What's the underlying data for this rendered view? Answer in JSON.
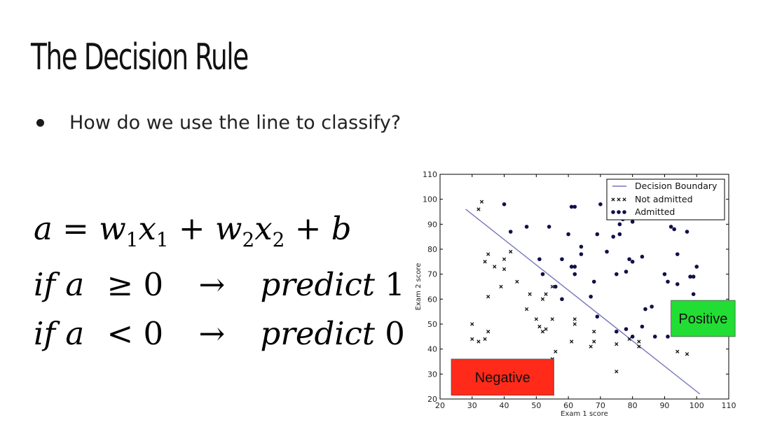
{
  "slide": {
    "title": "The Decision Rule",
    "bullet": "How do we use the line to classify?"
  },
  "equations": {
    "line1": {
      "a": "a",
      "eq": "=",
      "w1": "w",
      "s1": "1",
      "x1": "x",
      "s2": "1",
      "plus1": "+",
      "w2": "w",
      "s3": "2",
      "x2": "x",
      "s4": "2",
      "plus2": "+",
      "b": "b"
    },
    "line2": {
      "if": "if",
      "a": "a",
      "op": "≥ 0",
      "arrow": "→",
      "predict": "predict",
      "value": "1"
    },
    "line3": {
      "if": "if",
      "a": "a",
      "op": "< 0",
      "arrow": "→",
      "predict": "predict",
      "value": "0"
    }
  },
  "chart_data": {
    "type": "scatter",
    "xlabel": "Exam 1 score",
    "ylabel": "Exam 2 score",
    "xlim": [
      20,
      110
    ],
    "ylim": [
      20,
      110
    ],
    "xticks": [
      20,
      30,
      40,
      50,
      60,
      70,
      80,
      90,
      100,
      110
    ],
    "yticks": [
      20,
      30,
      40,
      50,
      60,
      70,
      80,
      90,
      100,
      110
    ],
    "grid": false,
    "legend_position": "top-right",
    "legend": [
      "Decision Boundary",
      "Not admitted",
      "Admitted"
    ],
    "boundary": {
      "name": "Decision Boundary",
      "color": "#7777bb",
      "x": [
        28,
        101
      ],
      "y": [
        96,
        22
      ]
    },
    "series": [
      {
        "name": "Not admitted",
        "marker": "x",
        "color": "#111111",
        "points": [
          [
            33,
            99
          ],
          [
            32,
            96
          ],
          [
            35,
            78
          ],
          [
            34,
            75
          ],
          [
            37,
            73
          ],
          [
            40,
            76
          ],
          [
            42,
            79
          ],
          [
            40,
            72
          ],
          [
            44,
            67
          ],
          [
            39,
            65
          ],
          [
            35,
            61
          ],
          [
            48,
            62
          ],
          [
            52,
            60
          ],
          [
            53,
            62
          ],
          [
            55,
            65
          ],
          [
            47,
            56
          ],
          [
            50,
            52
          ],
          [
            51,
            49
          ],
          [
            52,
            47
          ],
          [
            55,
            52
          ],
          [
            53,
            48
          ],
          [
            30,
            50
          ],
          [
            30,
            44
          ],
          [
            32,
            43
          ],
          [
            34,
            44
          ],
          [
            35,
            47
          ],
          [
            56,
            39
          ],
          [
            55,
            36
          ],
          [
            61,
            43
          ],
          [
            62,
            50
          ],
          [
            62,
            52
          ],
          [
            67,
            41
          ],
          [
            68,
            43
          ],
          [
            68,
            47
          ],
          [
            75,
            42
          ],
          [
            79,
            44
          ],
          [
            82,
            43
          ],
          [
            82,
            41
          ],
          [
            75,
            31
          ],
          [
            94,
            39
          ],
          [
            97,
            38
          ]
        ]
      },
      {
        "name": "Admitted",
        "marker": "o",
        "color": "#10104a",
        "points": [
          [
            40,
            98
          ],
          [
            42,
            87
          ],
          [
            47,
            89
          ],
          [
            54,
            89
          ],
          [
            61,
            97
          ],
          [
            62,
            97
          ],
          [
            70,
            98
          ],
          [
            76,
            90
          ],
          [
            77,
            92
          ],
          [
            74,
            85
          ],
          [
            76,
            86
          ],
          [
            80,
            91
          ],
          [
            60,
            86
          ],
          [
            64,
            81
          ],
          [
            58,
            76
          ],
          [
            61,
            73
          ],
          [
            62,
            73
          ],
          [
            62,
            70
          ],
          [
            64,
            78
          ],
          [
            72,
            79
          ],
          [
            83,
            77
          ],
          [
            69,
            86
          ],
          [
            51,
            76
          ],
          [
            52,
            70
          ],
          [
            56,
            65
          ],
          [
            58,
            60
          ],
          [
            67,
            61
          ],
          [
            68,
            67
          ],
          [
            69,
            53
          ],
          [
            75,
            70
          ],
          [
            78,
            71
          ],
          [
            79,
            76
          ],
          [
            80,
            75
          ],
          [
            84,
            56
          ],
          [
            86,
            57
          ],
          [
            83,
            49
          ],
          [
            87,
            45
          ],
          [
            75,
            47
          ],
          [
            78,
            48
          ],
          [
            80,
            45
          ],
          [
            90,
            70
          ],
          [
            91,
            67
          ],
          [
            93,
            88
          ],
          [
            92,
            89
          ],
          [
            97,
            87
          ],
          [
            94,
            78
          ],
          [
            94,
            66
          ],
          [
            98,
            69
          ],
          [
            99,
            69
          ],
          [
            100,
            73
          ],
          [
            99,
            62
          ],
          [
            91,
            45
          ]
        ]
      }
    ],
    "annotations": [
      {
        "text": "Positive",
        "color": "#22dd33",
        "x_range": [
          92,
          112
        ],
        "y_range": [
          45,
          59.5
        ]
      },
      {
        "text": "Negative",
        "color": "#ff2a1a",
        "x_range": [
          23.5,
          55.5
        ],
        "y_range": [
          21.5,
          36
        ]
      }
    ]
  }
}
